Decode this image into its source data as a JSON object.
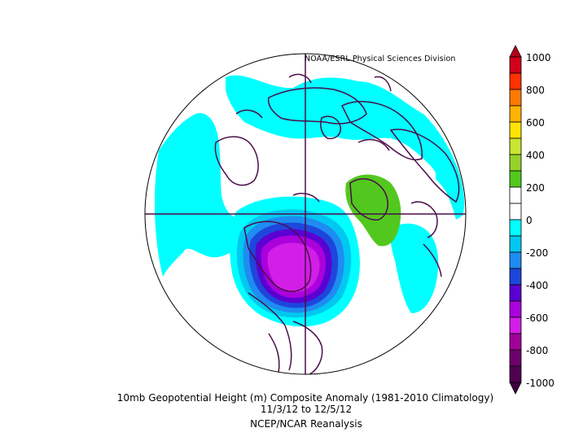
{
  "credit": "NOAA/ESRL Physical Sciences Division",
  "caption": {
    "line1": "10mb Geopotential Height (m) Composite Anomaly (1981-2010 Climatology)",
    "line2": "11/3/12  to 12/5/12",
    "line3": "NCEP/NCAR Reanalysis"
  },
  "colorbar": {
    "labels": [
      "1000",
      "800",
      "600",
      "400",
      "200",
      "0",
      "-200",
      "-400",
      "-600",
      "-800",
      "-1000"
    ],
    "colors": [
      "#d2001a",
      "#ff3200",
      "#ff7a00",
      "#ffb400",
      "#ffe400",
      "#c8e632",
      "#96d22a",
      "#52c81e",
      "#ffffff",
      "#ffffff",
      "#00ffff",
      "#00c8f0",
      "#1e8cf0",
      "#1e46dc",
      "#5a00d2",
      "#aa00dc",
      "#d21ee6",
      "#a0009a",
      "#6e006e",
      "#500050"
    ]
  },
  "map": {
    "projection": "north-polar-stereographic",
    "land_outline_color": "#4a0d4a",
    "ocean_color": "#ffffff"
  }
}
